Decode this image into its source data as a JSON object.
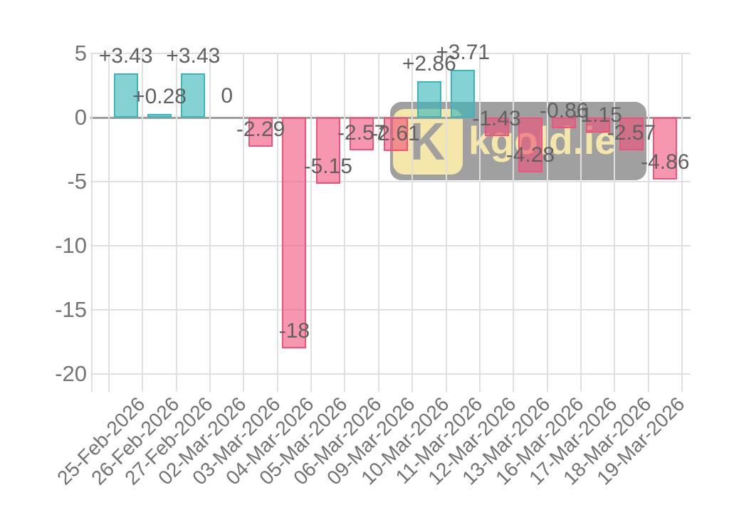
{
  "watermark": {
    "logo_letter": "K",
    "text": "kgold.ie",
    "box_color": "#a0a0a0",
    "cream_color": "#f5e7a9"
  },
  "chart_data": {
    "type": "bar",
    "title": "",
    "xlabel": "",
    "ylabel": "",
    "grid": true,
    "legend": "none",
    "ylim": [
      -20,
      5
    ],
    "y_ticks": [
      5,
      0,
      -5,
      -10,
      -15,
      -20
    ],
    "y_tick_labels": [
      "5",
      "0",
      "-5",
      "-10",
      "-15",
      "-20"
    ],
    "categories": [
      "25-Feb-2026",
      "26-Feb-2026",
      "27-Feb-2026",
      "02-Mar-2026",
      "03-Mar-2026",
      "04-Mar-2026",
      "05-Mar-2026",
      "06-Mar-2026",
      "09-Mar-2026",
      "10-Mar-2026",
      "11-Mar-2026",
      "12-Mar-2026",
      "13-Mar-2026",
      "16-Mar-2026",
      "17-Mar-2026",
      "18-Mar-2026",
      "19-Mar-2026"
    ],
    "values": [
      3.43,
      0.28,
      3.43,
      0,
      -2.29,
      -18,
      -5.15,
      -2.57,
      -2.61,
      2.86,
      3.71,
      -1.43,
      -4.28,
      -0.86,
      -1.15,
      -2.57,
      -4.86
    ],
    "value_labels": [
      "+3.43",
      "+0.28",
      "+3.43",
      "0",
      "-2.29",
      "-18",
      "-5.15",
      "-2.57",
      "-2.61",
      "+2.86",
      "+3.71",
      "-1.43",
      "-4.28",
      "-0.86",
      "-1.15",
      "-2.57",
      "-4.86"
    ],
    "colors": {
      "positive_stroke": "#3ab6bb",
      "positive_fill": "rgba(58,182,187,0.62)",
      "negative_stroke": "#f0527a",
      "negative_fill": "rgba(240,82,122,0.60)",
      "gridline": "#e0e0e0",
      "zero_line": "#9e9e9e",
      "axis_text": "#737373",
      "value_text": "#606060"
    }
  }
}
